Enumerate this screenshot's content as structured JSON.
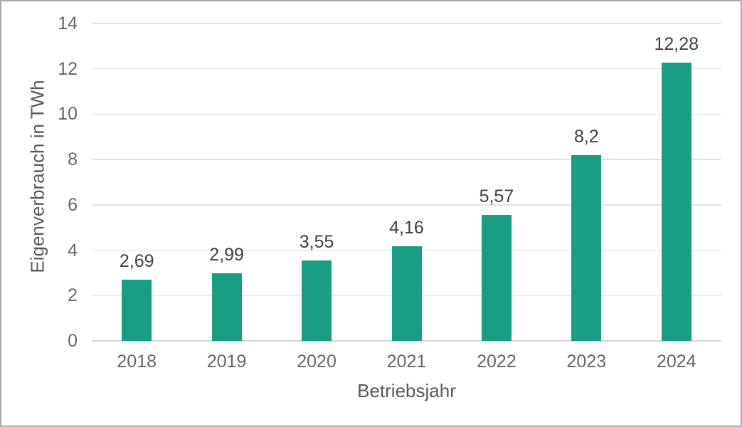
{
  "chart_data": {
    "type": "bar",
    "title": "",
    "xlabel": "Betriebsjahr",
    "ylabel": "Eigenverbrauch in TWh",
    "categories": [
      "2018",
      "2019",
      "2020",
      "2021",
      "2022",
      "2023",
      "2024"
    ],
    "values": [
      2.69,
      2.99,
      3.55,
      4.16,
      5.57,
      8.2,
      12.28
    ],
    "value_labels": [
      "2,69",
      "2,99",
      "3,55",
      "4,16",
      "5,57",
      "8,2",
      "12,28"
    ],
    "series_name": "Eigenverbrauch",
    "ylim": [
      0,
      14
    ],
    "yticks": [
      0,
      2,
      4,
      6,
      8,
      10,
      12,
      14
    ],
    "ytick_labels": [
      "0",
      "2",
      "4",
      "6",
      "8",
      "10",
      "12",
      "14"
    ],
    "grid": true,
    "legend_position": "none",
    "decimal_separator": ",",
    "colors": {
      "bar": "#1a9e83",
      "gridline": "#e2e2e2",
      "axis_line": "#d6d6d6",
      "tick_text": "#666666",
      "axis_title_text": "#595959",
      "data_label_text": "#404040",
      "frame_border": "#ababab",
      "background": "#ffffff"
    }
  }
}
